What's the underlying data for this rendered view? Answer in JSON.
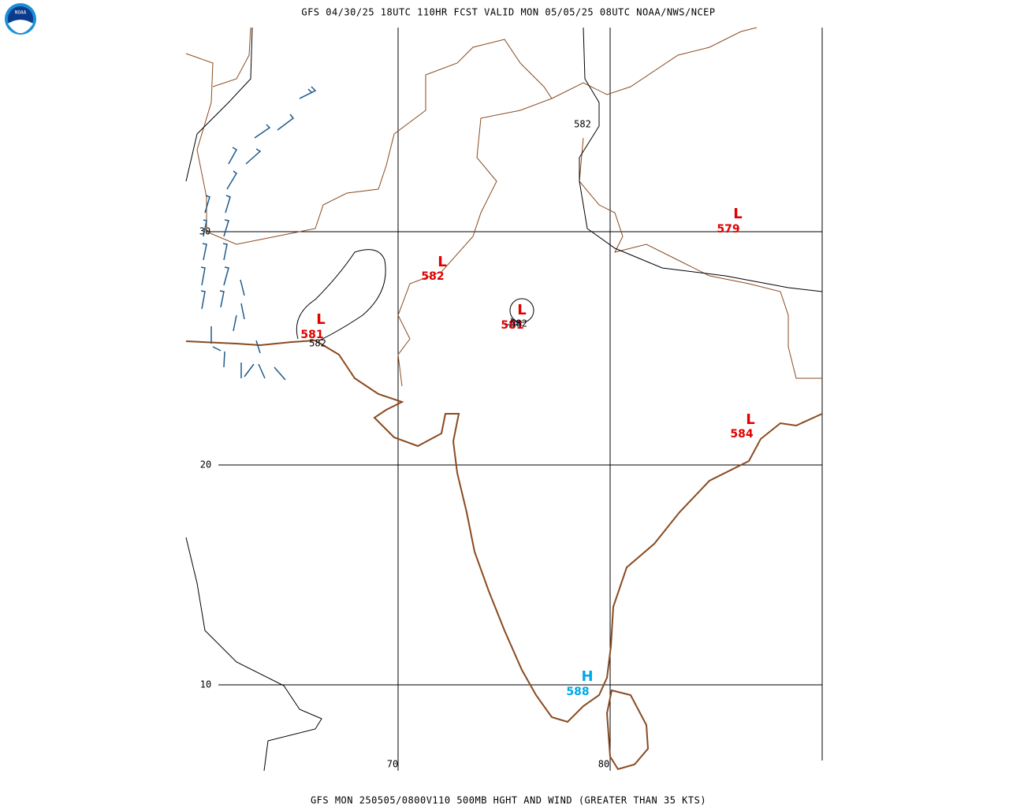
{
  "header": {
    "title": "GFS 04/30/25 18UTC 110HR FCST VALID MON 05/05/25 08UTC NOAA/NWS/NCEP",
    "logo": "NOAA"
  },
  "footer": {
    "text": "GFS MON 250505/0800V110 500MB HGHT AND WIND (GREATER THAN 35 KTS)"
  },
  "grid": {
    "latitudes": [
      30,
      20,
      10
    ],
    "longitudes": [
      70,
      80
    ]
  },
  "centers": [
    {
      "symbol": "L",
      "value": 579
    },
    {
      "symbol": "L",
      "value": 582
    },
    {
      "symbol": "L",
      "value": 581
    },
    {
      "symbol": "L",
      "value": 581
    },
    {
      "symbol": "L",
      "value": 584
    },
    {
      "symbol": "H",
      "value": 588
    }
  ],
  "contour_labels": [
    582,
    582,
    582
  ]
}
